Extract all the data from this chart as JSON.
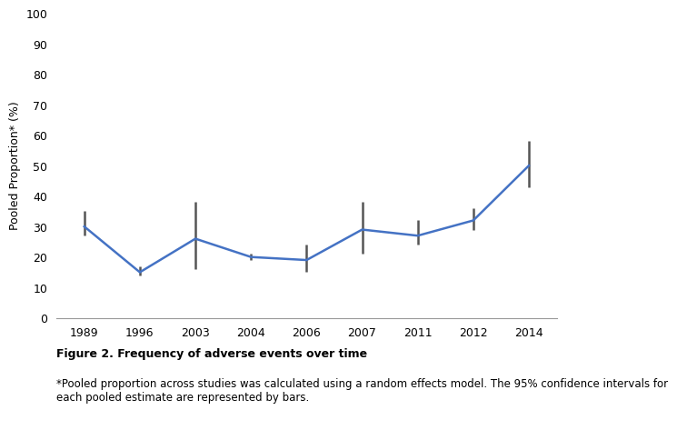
{
  "years": [
    "1989",
    "1996",
    "2003",
    "2004",
    "2006",
    "2007",
    "2011",
    "2012",
    "2014"
  ],
  "values": [
    30,
    15,
    26,
    20,
    19,
    29,
    27,
    32,
    50
  ],
  "ci_lower": [
    27,
    14,
    16,
    19,
    15,
    21,
    24,
    29,
    43
  ],
  "ci_upper": [
    35,
    17,
    38,
    21,
    24,
    38,
    32,
    36,
    58
  ],
  "line_color": "#4472c4",
  "ci_color": "#555555",
  "ylabel": "Pooled Proportion* (%)",
  "xlabel": "",
  "ylim": [
    0,
    100
  ],
  "yticks": [
    0,
    10,
    20,
    30,
    40,
    50,
    60,
    70,
    80,
    90,
    100
  ],
  "figure_label": "Figure 2. Frequency of adverse events over time",
  "figure_note": "*Pooled proportion across studies was calculated using a random effects model. The 95% confidence intervals for\neach pooled estimate are represented by bars.",
  "background_color": "#ffffff",
  "line_width": 1.8,
  "capsize": 0,
  "figure_label_fontsize": 9,
  "figure_note_fontsize": 8.5,
  "axis_fontsize": 9,
  "tick_fontsize": 9,
  "spine_color": "#999999"
}
